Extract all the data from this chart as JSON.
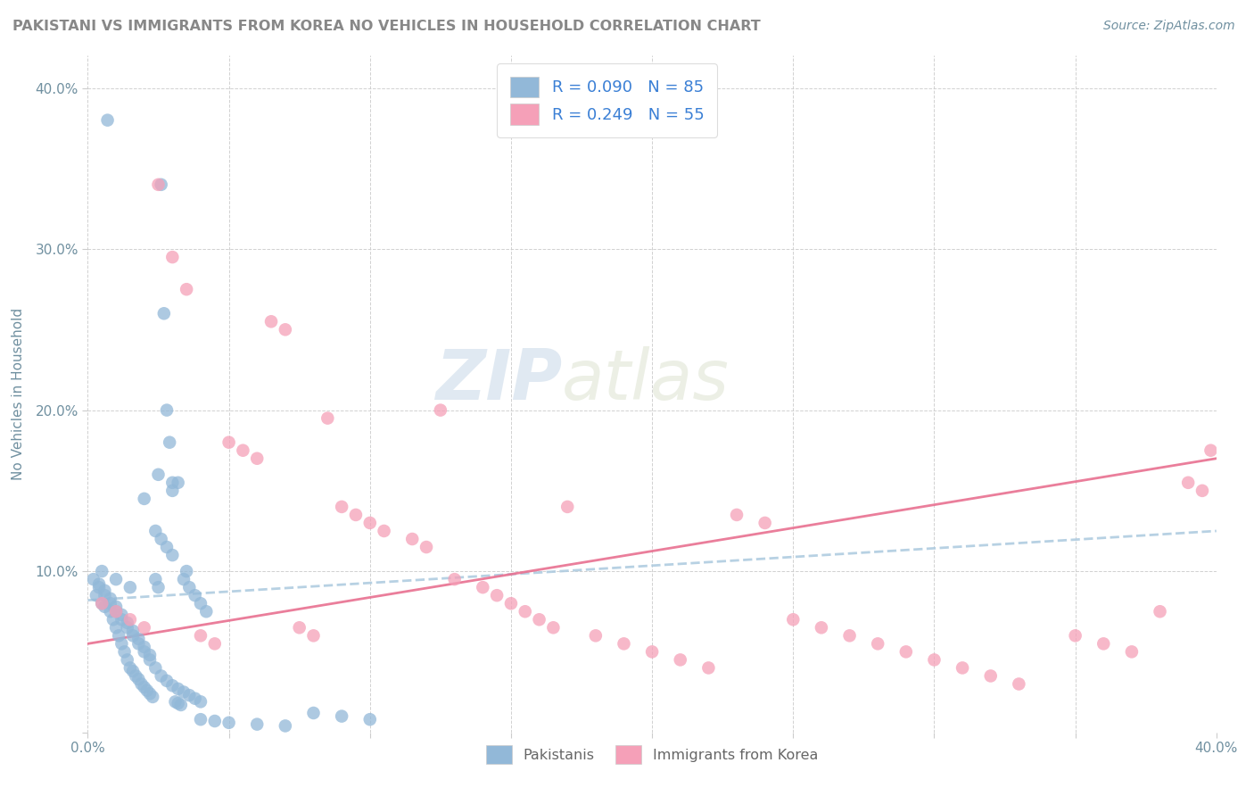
{
  "title": "PAKISTANI VS IMMIGRANTS FROM KOREA NO VEHICLES IN HOUSEHOLD CORRELATION CHART",
  "source": "Source: ZipAtlas.com",
  "ylabel": "No Vehicles in Household",
  "watermark_zip": "ZIP",
  "watermark_atlas": "atlas",
  "xlim": [
    0.0,
    0.4
  ],
  "ylim": [
    0.0,
    0.42
  ],
  "blue_color": "#92b8d8",
  "pink_color": "#f5a0b8",
  "trend_blue_color": "#b0cce0",
  "trend_pink_color": "#e87090",
  "legend_text_color": "#3a7fd5",
  "axis_text_color": "#7090a0",
  "title_color": "#888888",
  "pakistanis_x": [
    0.003,
    0.005,
    0.006,
    0.007,
    0.008,
    0.009,
    0.01,
    0.011,
    0.012,
    0.013,
    0.014,
    0.015,
    0.016,
    0.017,
    0.018,
    0.019,
    0.02,
    0.021,
    0.022,
    0.023,
    0.024,
    0.025,
    0.026,
    0.027,
    0.028,
    0.029,
    0.03,
    0.031,
    0.032,
    0.033,
    0.004,
    0.006,
    0.008,
    0.01,
    0.012,
    0.014,
    0.016,
    0.018,
    0.02,
    0.022,
    0.024,
    0.026,
    0.028,
    0.03,
    0.032,
    0.034,
    0.036,
    0.038,
    0.04,
    0.042,
    0.002,
    0.004,
    0.006,
    0.008,
    0.01,
    0.012,
    0.014,
    0.016,
    0.018,
    0.02,
    0.022,
    0.024,
    0.026,
    0.028,
    0.03,
    0.032,
    0.034,
    0.036,
    0.038,
    0.04,
    0.005,
    0.01,
    0.015,
    0.02,
    0.025,
    0.03,
    0.035,
    0.04,
    0.045,
    0.05,
    0.06,
    0.07,
    0.08,
    0.09,
    0.1
  ],
  "pakistanis_y": [
    0.085,
    0.08,
    0.078,
    0.38,
    0.075,
    0.07,
    0.065,
    0.06,
    0.055,
    0.05,
    0.045,
    0.04,
    0.038,
    0.035,
    0.033,
    0.03,
    0.028,
    0.026,
    0.024,
    0.022,
    0.095,
    0.09,
    0.34,
    0.26,
    0.2,
    0.18,
    0.155,
    0.019,
    0.018,
    0.017,
    0.092,
    0.088,
    0.083,
    0.078,
    0.073,
    0.068,
    0.063,
    0.058,
    0.053,
    0.048,
    0.125,
    0.12,
    0.115,
    0.11,
    0.155,
    0.095,
    0.09,
    0.085,
    0.08,
    0.075,
    0.095,
    0.09,
    0.085,
    0.08,
    0.075,
    0.07,
    0.065,
    0.06,
    0.055,
    0.05,
    0.045,
    0.04,
    0.035,
    0.032,
    0.029,
    0.027,
    0.025,
    0.023,
    0.021,
    0.019,
    0.1,
    0.095,
    0.09,
    0.145,
    0.16,
    0.15,
    0.1,
    0.008,
    0.007,
    0.006,
    0.005,
    0.004,
    0.012,
    0.01,
    0.008
  ],
  "korea_x": [
    0.005,
    0.01,
    0.015,
    0.02,
    0.025,
    0.03,
    0.035,
    0.04,
    0.045,
    0.05,
    0.055,
    0.06,
    0.065,
    0.07,
    0.075,
    0.08,
    0.085,
    0.09,
    0.095,
    0.1,
    0.105,
    0.115,
    0.12,
    0.125,
    0.13,
    0.14,
    0.145,
    0.15,
    0.155,
    0.16,
    0.165,
    0.17,
    0.18,
    0.19,
    0.2,
    0.21,
    0.22,
    0.23,
    0.24,
    0.25,
    0.26,
    0.27,
    0.28,
    0.29,
    0.3,
    0.31,
    0.32,
    0.33,
    0.35,
    0.36,
    0.37,
    0.38,
    0.39,
    0.395,
    0.398
  ],
  "korea_y": [
    0.08,
    0.075,
    0.07,
    0.065,
    0.34,
    0.295,
    0.275,
    0.06,
    0.055,
    0.18,
    0.175,
    0.17,
    0.255,
    0.25,
    0.065,
    0.06,
    0.195,
    0.14,
    0.135,
    0.13,
    0.125,
    0.12,
    0.115,
    0.2,
    0.095,
    0.09,
    0.085,
    0.08,
    0.075,
    0.07,
    0.065,
    0.14,
    0.06,
    0.055,
    0.05,
    0.045,
    0.04,
    0.135,
    0.13,
    0.07,
    0.065,
    0.06,
    0.055,
    0.05,
    0.045,
    0.04,
    0.035,
    0.03,
    0.06,
    0.055,
    0.05,
    0.075,
    0.155,
    0.15,
    0.175
  ]
}
